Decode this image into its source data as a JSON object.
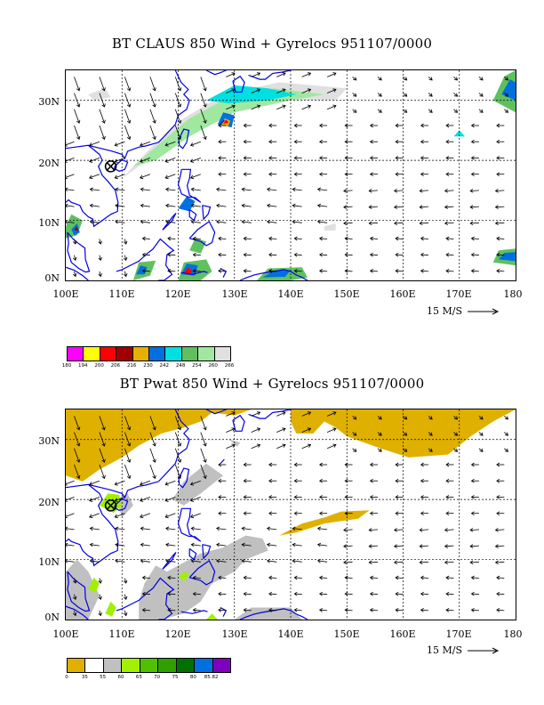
{
  "panels": [
    {
      "id": "claus",
      "title": "BT CLAUS 850 Wind + Gyrelocs 951107/0000",
      "y_ticks": [
        "30N",
        "20N",
        "10N",
        "0N"
      ],
      "x_ticks": [
        "100E",
        "110E",
        "120E",
        "130E",
        "140E",
        "150E",
        "160E",
        "170E",
        "180"
      ],
      "ref_vector": "15 M/S",
      "colorbar": {
        "colors": [
          "#ff00ff",
          "#ffff00",
          "#ff0000",
          "#a00000",
          "#e6b000",
          "#0070e0",
          "#00e0e0",
          "#60c060",
          "#a0e8a0",
          "#e0e0e0"
        ],
        "labels": [
          "180",
          "194",
          "200",
          "206",
          "216",
          "230",
          "242",
          "248",
          "254",
          "260",
          "266"
        ]
      }
    },
    {
      "id": "pwat",
      "title": "BT Pwat 850 Wind + Gyrelocs 951107/0000",
      "y_ticks": [
        "30N",
        "20N",
        "10N",
        "0N"
      ],
      "x_ticks": [
        "100E",
        "110E",
        "120E",
        "130E",
        "140E",
        "150E",
        "160E",
        "170E",
        "180"
      ],
      "ref_vector": "15 M/S",
      "colorbar": {
        "colors": [
          "#e0b000",
          "#ffffff",
          "#c0c0c0",
          "#a0f000",
          "#50c000",
          "#30a000",
          "#007000",
          "#0070e0",
          "#8000c0"
        ],
        "labels": [
          "0",
          "35",
          "55",
          "60",
          "65",
          "70",
          "75",
          "80",
          "85.82"
        ]
      }
    }
  ],
  "gyre_marker": {
    "lon": 108,
    "lat": 19,
    "symbol": "⊗"
  },
  "colors": {
    "coastline": "#0000e0",
    "arrows": "#000000",
    "grid": "#000000"
  }
}
